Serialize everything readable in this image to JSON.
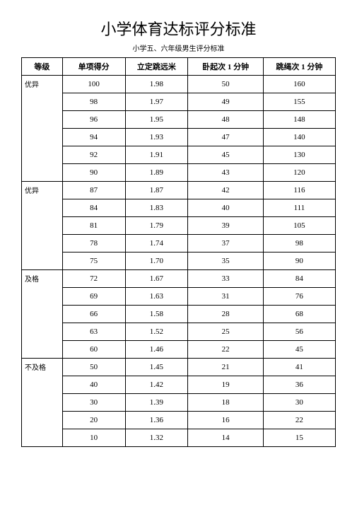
{
  "title": "小学体育达标评分标准",
  "subtitle": "小学五、六年级男生评分标准",
  "columns": {
    "grade": "等级",
    "score": "单项得分",
    "jump": "立定跳远米",
    "situp": "卧起次 1 分钟",
    "rope": "跳绳次 1 分钟"
  },
  "groups": [
    {
      "grade": "优异",
      "rows": [
        {
          "score": "100",
          "jump": "1.98",
          "situp": "50",
          "rope": "160"
        },
        {
          "score": "98",
          "jump": "1.97",
          "situp": "49",
          "rope": "155"
        },
        {
          "score": "96",
          "jump": "1.95",
          "situp": "48",
          "rope": "148"
        },
        {
          "score": "94",
          "jump": "1.93",
          "situp": "47",
          "rope": "140"
        },
        {
          "score": "92",
          "jump": "1.91",
          "situp": "45",
          "rope": "130"
        },
        {
          "score": "90",
          "jump": "1.89",
          "situp": "43",
          "rope": "120"
        }
      ]
    },
    {
      "grade": "优异",
      "rows": [
        {
          "score": "87",
          "jump": "1.87",
          "situp": "42",
          "rope": "116"
        },
        {
          "score": "84",
          "jump": "1.83",
          "situp": "40",
          "rope": "111"
        },
        {
          "score": "81",
          "jump": "1.79",
          "situp": "39",
          "rope": "105"
        },
        {
          "score": "78",
          "jump": "1.74",
          "situp": "37",
          "rope": "98"
        },
        {
          "score": "75",
          "jump": "1.70",
          "situp": "35",
          "rope": "90"
        }
      ]
    },
    {
      "grade": "及格",
      "rows": [
        {
          "score": "72",
          "jump": "1.67",
          "situp": "33",
          "rope": "84"
        },
        {
          "score": "69",
          "jump": "1.63",
          "situp": "31",
          "rope": "76"
        },
        {
          "score": "66",
          "jump": "1.58",
          "situp": "28",
          "rope": "68"
        },
        {
          "score": "63",
          "jump": "1.52",
          "situp": "25",
          "rope": "56"
        },
        {
          "score": "60",
          "jump": "1.46",
          "situp": "22",
          "rope": "45"
        }
      ]
    },
    {
      "grade": "不及格",
      "rows": [
        {
          "score": "50",
          "jump": "1.45",
          "situp": "21",
          "rope": "41"
        },
        {
          "score": "40",
          "jump": "1.42",
          "situp": "19",
          "rope": "36"
        },
        {
          "score": "30",
          "jump": "1.39",
          "situp": "18",
          "rope": "30"
        },
        {
          "score": "20",
          "jump": "1.36",
          "situp": "16",
          "rope": "22"
        },
        {
          "score": "10",
          "jump": "1.32",
          "situp": "14",
          "rope": "15"
        }
      ]
    }
  ]
}
